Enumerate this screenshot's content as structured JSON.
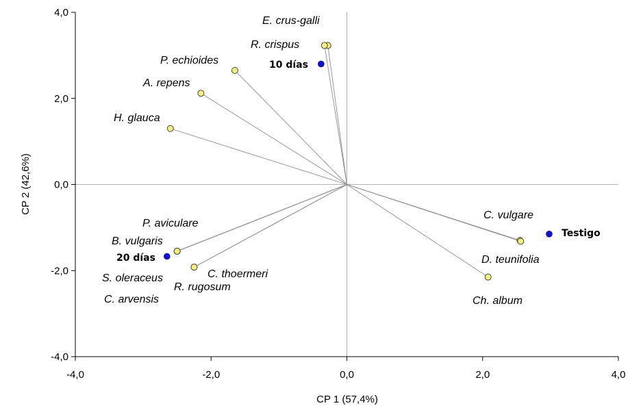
{
  "chart_data": {
    "type": "scatter",
    "title": "",
    "xlabel": "CP 1 (57,4%)",
    "ylabel": "CP 2 (42,6%)",
    "xlim": [
      -4.0,
      4.0
    ],
    "ylim": [
      -4.0,
      4.0
    ],
    "xticks": [
      "-4,0",
      "-2,0",
      "0,0",
      "2,0",
      "4,0"
    ],
    "yticks": [
      "-4,0",
      "-2,0",
      "0,0",
      "2,0",
      "4,0"
    ],
    "xtick_values": [
      -4,
      -2,
      0,
      2,
      4
    ],
    "ytick_values": [
      -4,
      -2,
      0,
      2,
      4
    ],
    "grid": false,
    "reference_lines": {
      "x": 0,
      "y": 0
    },
    "colors": {
      "species_fill": "#f5ee8a",
      "treatment_fill": "#1010c8",
      "vector_line": "#8c8c8c",
      "reference_line": "#9a9a9a"
    },
    "species": [
      {
        "label": "E. crus-galli",
        "x": -0.28,
        "y": 3.23
      },
      {
        "label": "R. crispus",
        "x": -0.33,
        "y": 3.23
      },
      {
        "label": "P. echioides",
        "x": -1.65,
        "y": 2.65
      },
      {
        "label": "A. repens",
        "x": -2.15,
        "y": 2.12
      },
      {
        "label": "H. glauca",
        "x": -2.6,
        "y": 1.3
      },
      {
        "label": "C. vulgare",
        "x": 2.55,
        "y": -1.3
      },
      {
        "label": "D. teunifolia",
        "x": 2.56,
        "y": -1.32
      },
      {
        "label": "Ch. album",
        "x": 2.08,
        "y": -2.15
      },
      {
        "label": "P. aviculare",
        "x": -2.5,
        "y": -1.55
      },
      {
        "label": "B. vulgaris",
        "x": -2.5,
        "y": -1.55
      },
      {
        "label": "S. oleraceus",
        "x": -2.5,
        "y": -1.55
      },
      {
        "label": "C. arvensis",
        "x": -2.5,
        "y": -1.55
      },
      {
        "label": "C. thoermeri",
        "x": -2.25,
        "y": -1.92
      },
      {
        "label": "R. rugosum",
        "x": -2.25,
        "y": -1.92
      }
    ],
    "treatments": [
      {
        "label": "10 días",
        "x": -0.38,
        "y": 2.8
      },
      {
        "label": "Testigo",
        "x": 2.98,
        "y": -1.15
      },
      {
        "label": "20 días",
        "x": -2.65,
        "y": -1.67
      }
    ]
  }
}
